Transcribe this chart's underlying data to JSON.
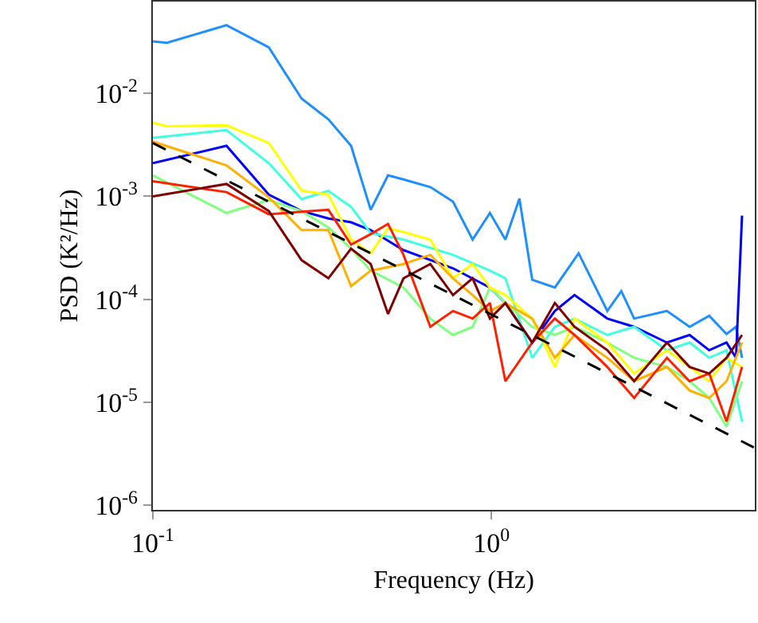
{
  "chart_data": {
    "type": "line",
    "xlabel": "Frequency (Hz)",
    "ylabel": "PSD (K²/Hz)",
    "log": "xy",
    "marker": "none",
    "xlim": [
      0.1,
      6
    ],
    "ylim": [
      9e-07,
      0.078
    ],
    "xticks": [
      {
        "value": 0.1,
        "label": "10$^{-1}$"
      },
      {
        "value": 1,
        "label": "10$^{0}$"
      }
    ],
    "yticks": [
      {
        "value": 1e-06,
        "label": "10$^{-6}$"
      },
      {
        "value": 1e-05,
        "label": "10$^{-5}$"
      },
      {
        "value": 0.0001,
        "label": "10$^{-4}$"
      },
      {
        "value": 0.001,
        "label": "10$^{-3}$"
      },
      {
        "value": 0.01,
        "label": "10$^{-2}$"
      }
    ],
    "series": [
      {
        "color": "#1e8fff",
        "x": [
          0.1,
          0.11,
          0.165,
          0.22,
          0.275,
          0.33,
          0.385,
          0.44,
          0.495,
          0.55,
          0.66,
          0.77,
          0.88,
          0.99,
          1.1,
          1.21,
          1.32,
          1.54,
          1.81,
          2.2,
          2.42,
          2.64,
          3.3,
          3.85,
          4.4,
          4.95,
          5.28,
          5.5
        ],
        "values": [
          0.032,
          0.031,
          0.046,
          0.028,
          0.0089,
          0.0056,
          0.0031,
          0.00074,
          0.0016,
          0.00146,
          0.00123,
          0.00089,
          0.00038,
          0.00069,
          0.00038,
          0.00095,
          0.000155,
          0.00013,
          0.00028,
          7.7e-05,
          0.00012,
          6.5e-05,
          7.7e-05,
          5.4e-05,
          6.9e-05,
          4.6e-05,
          5.4e-05,
          2.7e-05
        ]
      },
      {
        "color": "#0000ff",
        "x": [
          0.1,
          0.165,
          0.22,
          0.275,
          0.33,
          0.385,
          0.44,
          0.55,
          0.77,
          0.99,
          1.1,
          1.32,
          1.54,
          1.76,
          2.2,
          2.64,
          3.3,
          3.85,
          4.4,
          4.95,
          5.28,
          5.5
        ],
        "values": [
          0.0021,
          0.0031,
          0.00104,
          0.00072,
          0.00061,
          0.00056,
          0.00047,
          0.0003,
          0.0002,
          0.00013,
          9.2e-05,
          3.8e-05,
          7.7e-05,
          0.00011,
          6.5e-05,
          5.4e-05,
          3.8e-05,
          4.5e-05,
          3.2e-05,
          3.8e-05,
          2.7e-05,
          0.00065
        ]
      },
      {
        "color": "#40ffe0",
        "x": [
          0.1,
          0.165,
          0.22,
          0.275,
          0.33,
          0.385,
          0.44,
          0.55,
          0.77,
          0.99,
          1.1,
          1.32,
          1.54,
          1.76,
          2.2,
          2.64,
          3.3,
          3.85,
          4.4,
          4.95,
          5.5
        ],
        "values": [
          0.0037,
          0.0044,
          0.0021,
          0.00094,
          0.00113,
          0.00079,
          0.00044,
          0.00038,
          0.00027,
          0.00019,
          0.00016,
          2.7e-05,
          5.4e-05,
          6.5e-05,
          4.5e-05,
          5.4e-05,
          3.2e-05,
          3.8e-05,
          2.7e-05,
          3.2e-05,
          6.5e-06
        ]
      },
      {
        "color": "#80ff80",
        "x": [
          0.1,
          0.165,
          0.22,
          0.275,
          0.33,
          0.385,
          0.44,
          0.55,
          0.66,
          0.77,
          0.88,
          0.99,
          1.1,
          1.32,
          1.54,
          1.76,
          2.2,
          2.64,
          3.3,
          3.85,
          4.4,
          4.95,
          5.5
        ],
        "values": [
          0.0016,
          0.00069,
          0.00092,
          0.00072,
          0.0005,
          0.00031,
          0.00019,
          0.00013,
          6.5e-05,
          4.5e-05,
          5.4e-05,
          0.00013,
          9.2e-05,
          5.4e-05,
          4.5e-05,
          5.4e-05,
          3.8e-05,
          2.7e-05,
          2.2e-05,
          1.6e-05,
          1.1e-05,
          5.8e-06,
          1.6e-05
        ]
      },
      {
        "color": "#ffff00",
        "x": [
          0.1,
          0.11,
          0.165,
          0.22,
          0.275,
          0.33,
          0.385,
          0.44,
          0.495,
          0.55,
          0.66,
          0.77,
          0.88,
          0.99,
          1.1,
          1.32,
          1.54,
          1.76,
          2.2,
          2.64,
          3.3,
          3.85,
          4.4,
          4.95,
          5.5
        ],
        "values": [
          0.0052,
          0.0048,
          0.0049,
          0.0033,
          0.00114,
          0.00104,
          0.00038,
          0.00028,
          0.00049,
          0.00045,
          0.00038,
          0.00016,
          0.00022,
          0.00013,
          0.00011,
          6.5e-05,
          2.2e-05,
          6.5e-05,
          3.8e-05,
          1.9e-05,
          3.2e-05,
          2.2e-05,
          1.6e-05,
          2.7e-05,
          2.2e-05
        ]
      },
      {
        "color": "#ffb000",
        "x": [
          0.1,
          0.165,
          0.22,
          0.275,
          0.33,
          0.385,
          0.44,
          0.55,
          0.66,
          0.77,
          0.88,
          0.99,
          1.1,
          1.32,
          1.54,
          1.76,
          2.2,
          2.64,
          3.3,
          3.85,
          4.4,
          4.95,
          5.5
        ],
        "values": [
          0.0034,
          0.002,
          0.00098,
          0.00047,
          0.00047,
          0.000134,
          0.00019,
          0.00022,
          0.00027,
          0.00016,
          0.00011,
          7.7e-05,
          9.2e-05,
          6.5e-05,
          2.7e-05,
          4.5e-05,
          2.7e-05,
          1.6e-05,
          2.2e-05,
          1.3e-05,
          1.1e-05,
          1.6e-05,
          3.8e-05
        ]
      },
      {
        "color": "#ff2000",
        "x": [
          0.1,
          0.165,
          0.22,
          0.275,
          0.33,
          0.385,
          0.44,
          0.495,
          0.55,
          0.66,
          0.77,
          0.88,
          0.99,
          1.1,
          1.32,
          1.54,
          1.76,
          2.2,
          2.64,
          3.3,
          3.85,
          4.4,
          4.95,
          5.5
        ],
        "values": [
          0.0014,
          0.0011,
          0.00067,
          0.00071,
          0.00074,
          0.00034,
          0.00043,
          0.00054,
          0.00027,
          5.4e-05,
          7.7e-05,
          6.5e-05,
          9.2e-05,
          1.6e-05,
          3.8e-05,
          6.5e-05,
          4.5e-05,
          2.2e-05,
          1.1e-05,
          2.7e-05,
          1.6e-05,
          1.9e-05,
          6.5e-06,
          2.2e-05
        ]
      },
      {
        "color": "#800000",
        "x": [
          0.1,
          0.165,
          0.22,
          0.275,
          0.33,
          0.385,
          0.44,
          0.495,
          0.55,
          0.66,
          0.77,
          0.88,
          0.99,
          1.1,
          1.32,
          1.54,
          1.76,
          2.2,
          2.64,
          3.3,
          3.85,
          4.4,
          4.95,
          5.5
        ],
        "values": [
          0.001,
          0.00132,
          0.00072,
          0.00024,
          0.00016,
          0.00031,
          0.00022,
          7.2e-05,
          0.00016,
          0.00022,
          0.00011,
          0.00016,
          6.5e-05,
          9.2e-05,
          3.8e-05,
          9.2e-05,
          5.4e-05,
          3.2e-05,
          1.6e-05,
          3.8e-05,
          2.2e-05,
          1.9e-05,
          2.7e-05,
          4.5e-05
        ]
      },
      {
        "color": "#000000",
        "line_style": "dashed",
        "x": [
          0.1,
          6
        ],
        "values": [
          0.0033,
          3.6e-06
        ]
      }
    ]
  }
}
